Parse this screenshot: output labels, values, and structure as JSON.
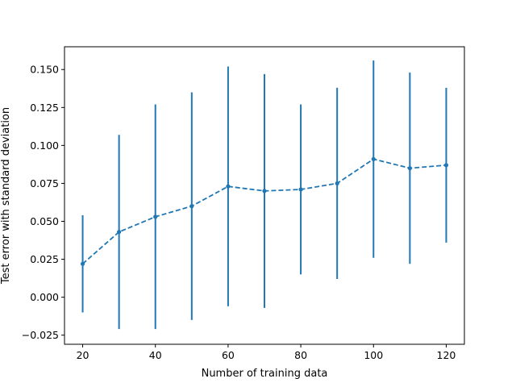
{
  "chart_data": {
    "type": "line",
    "title": "",
    "xlabel": "Number of training data",
    "ylabel": "Test error with standard deviation",
    "xlim": [
      15,
      125
    ],
    "ylim": [
      -0.031,
      0.165
    ],
    "xticks": [
      20,
      40,
      60,
      80,
      100,
      120
    ],
    "yticks": [
      -0.025,
      0.0,
      0.025,
      0.05,
      0.075,
      0.1,
      0.125,
      0.15
    ],
    "ytick_labels": [
      "−0.025",
      "0.000",
      "0.025",
      "0.050",
      "0.075",
      "0.100",
      "0.125",
      "0.150"
    ],
    "grid": false,
    "color": "#1f77b4",
    "line_style": "dashed",
    "marker": "point",
    "series": [
      {
        "x": [
          20,
          30,
          40,
          50,
          60,
          70,
          80,
          90,
          100,
          110,
          120
        ],
        "y": [
          0.022,
          0.043,
          0.053,
          0.06,
          0.073,
          0.07,
          0.071,
          0.075,
          0.091,
          0.085,
          0.087
        ],
        "std": [
          0.032,
          0.064,
          0.074,
          0.075,
          0.079,
          0.077,
          0.056,
          0.063,
          0.065,
          0.063,
          0.051
        ]
      }
    ]
  }
}
